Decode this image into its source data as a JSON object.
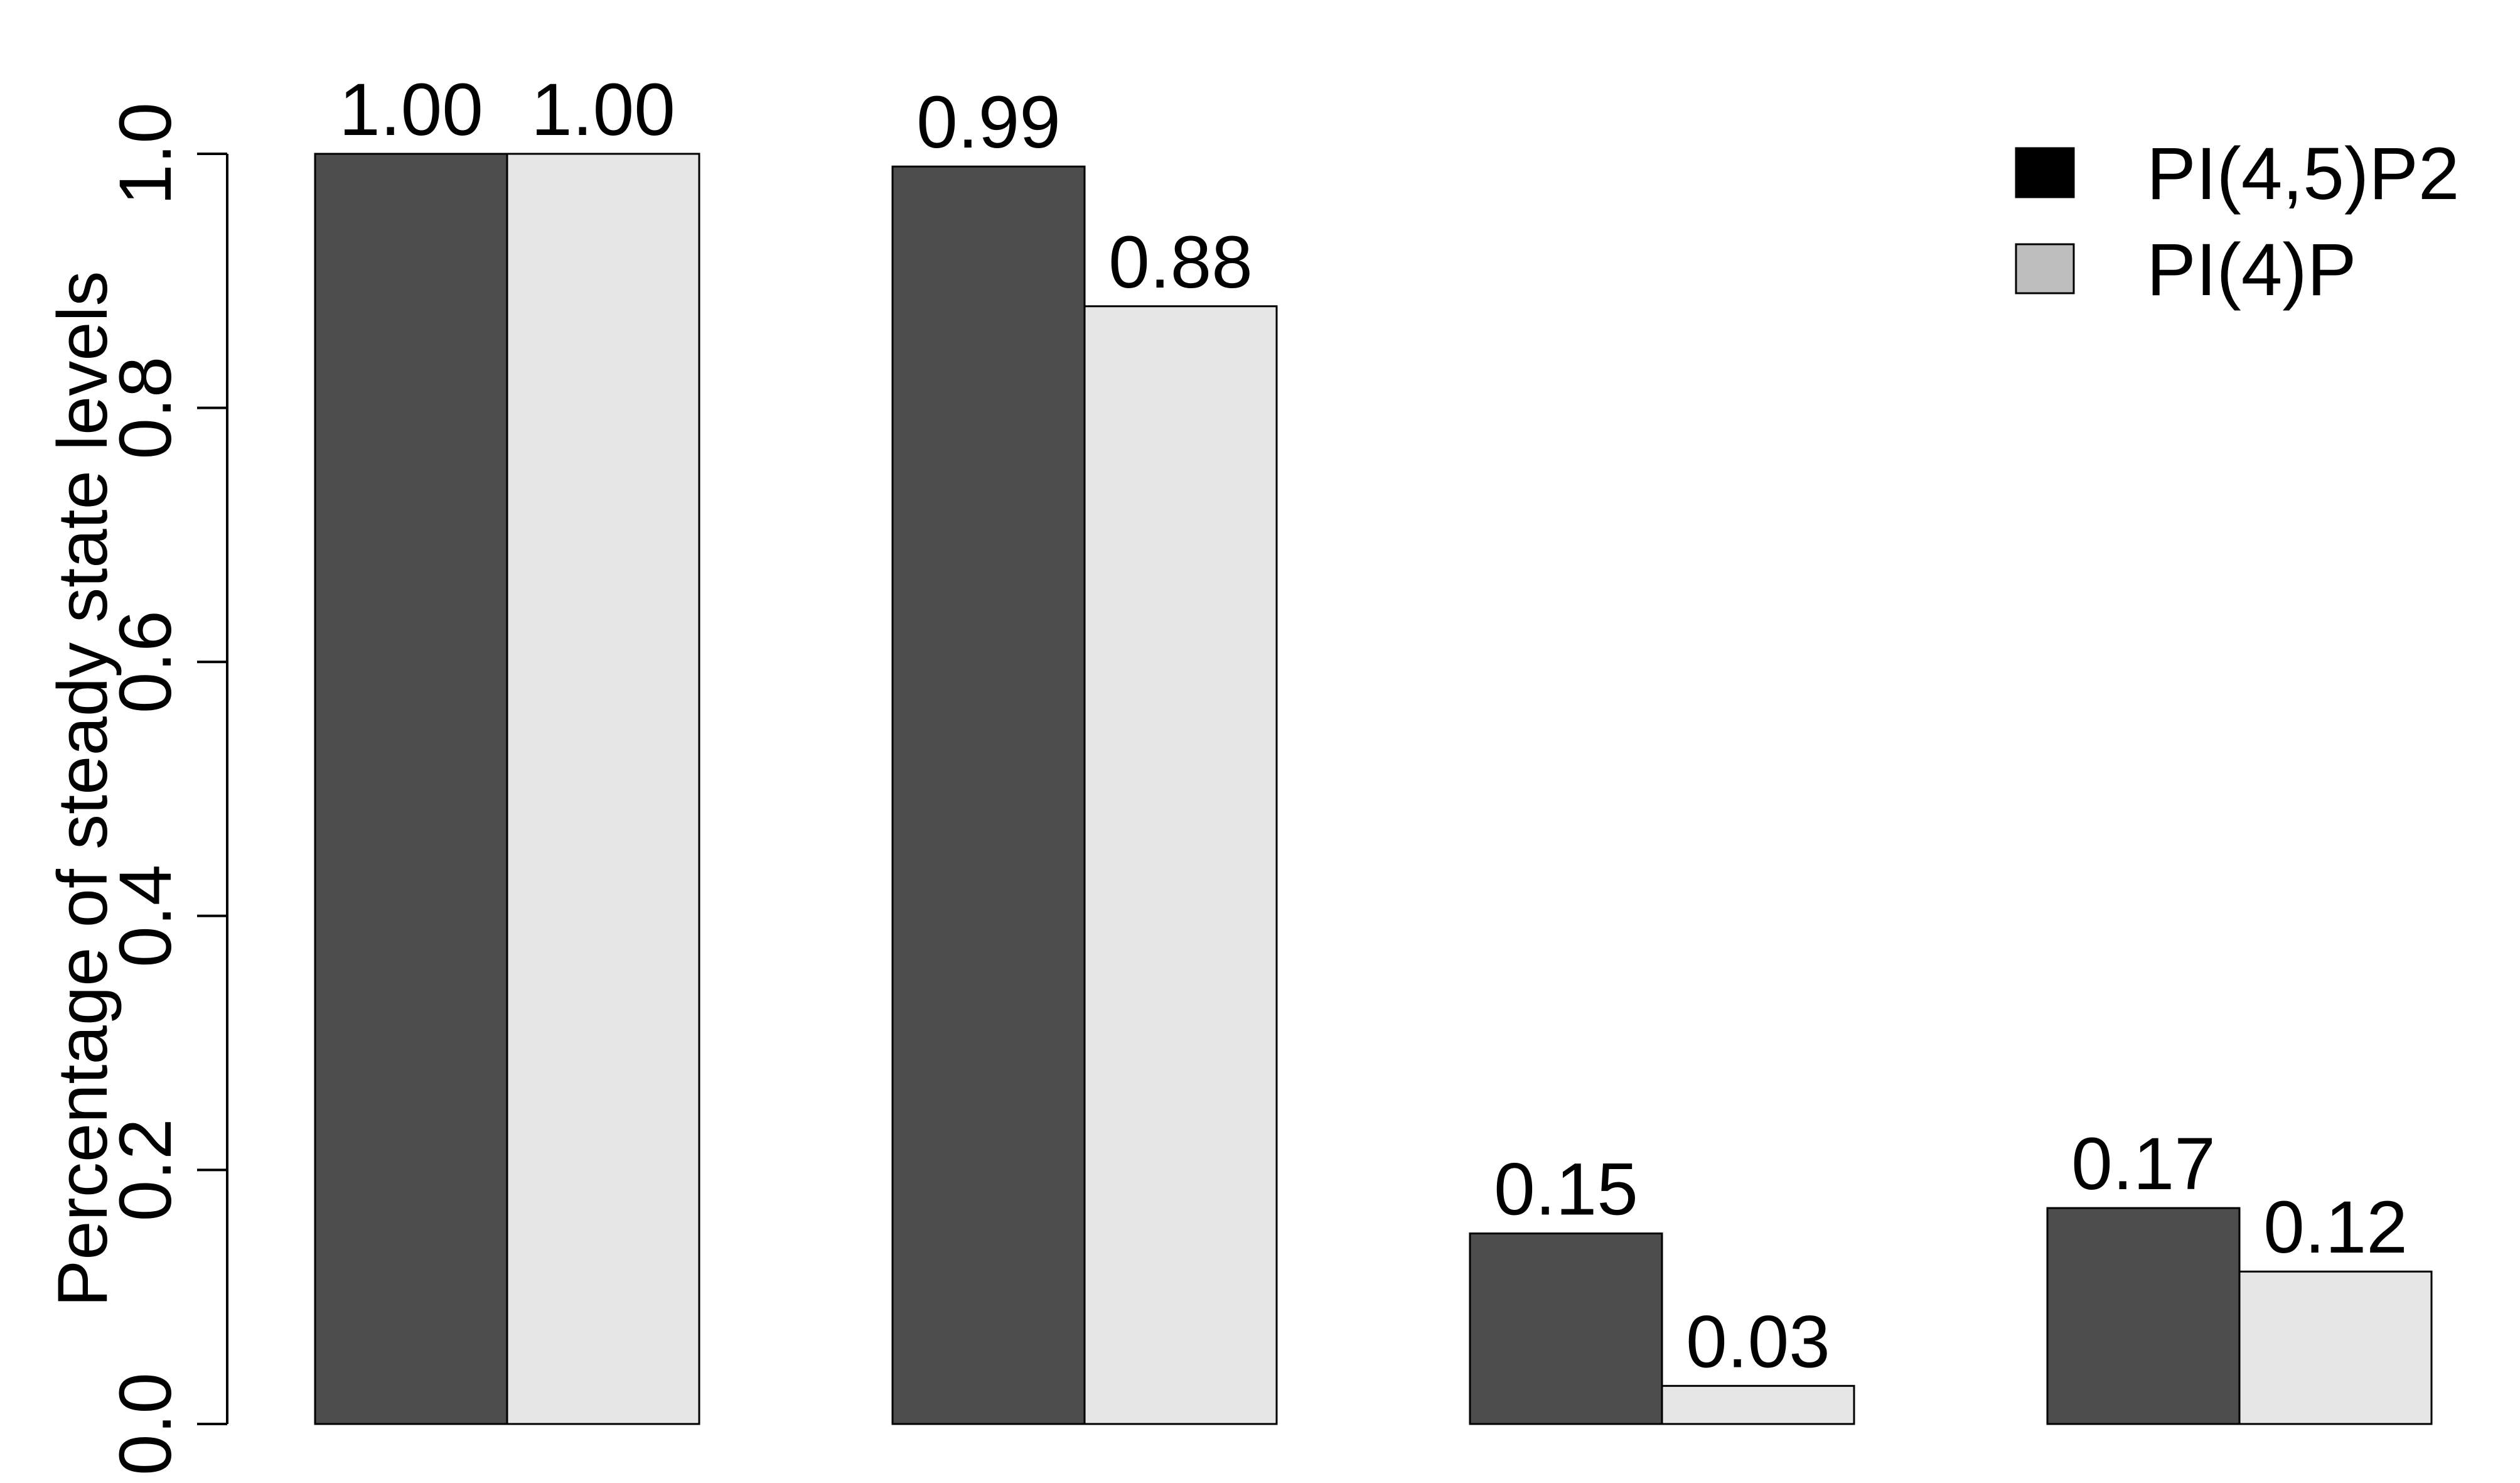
{
  "chart_data": {
    "type": "bar",
    "categories": [
      "",
      "",
      "",
      ""
    ],
    "series": [
      {
        "name": "PI(4,5)P2",
        "color": "#4d4d4d",
        "values": [
          1.0,
          0.99,
          0.15,
          0.17
        ],
        "labels": [
          "1.00",
          "0.99",
          "0.15",
          "0.17"
        ]
      },
      {
        "name": "PI(4)P",
        "color": "#e6e6e6",
        "values": [
          1.0,
          0.88,
          0.03,
          0.12
        ],
        "labels": [
          "1.00",
          "0.88",
          "0.03",
          "0.12"
        ]
      }
    ],
    "title": "",
    "xlabel": "",
    "ylabel": "Percentage of steady state levels",
    "ylim": [
      0,
      1
    ],
    "yticks": [
      "0.0",
      "0.2",
      "0.4",
      "0.6",
      "0.8",
      "1.0"
    ],
    "grid": false,
    "legend": {
      "position": "top-right",
      "swatch_colors": [
        "#000000",
        "#bebebe"
      ]
    }
  }
}
